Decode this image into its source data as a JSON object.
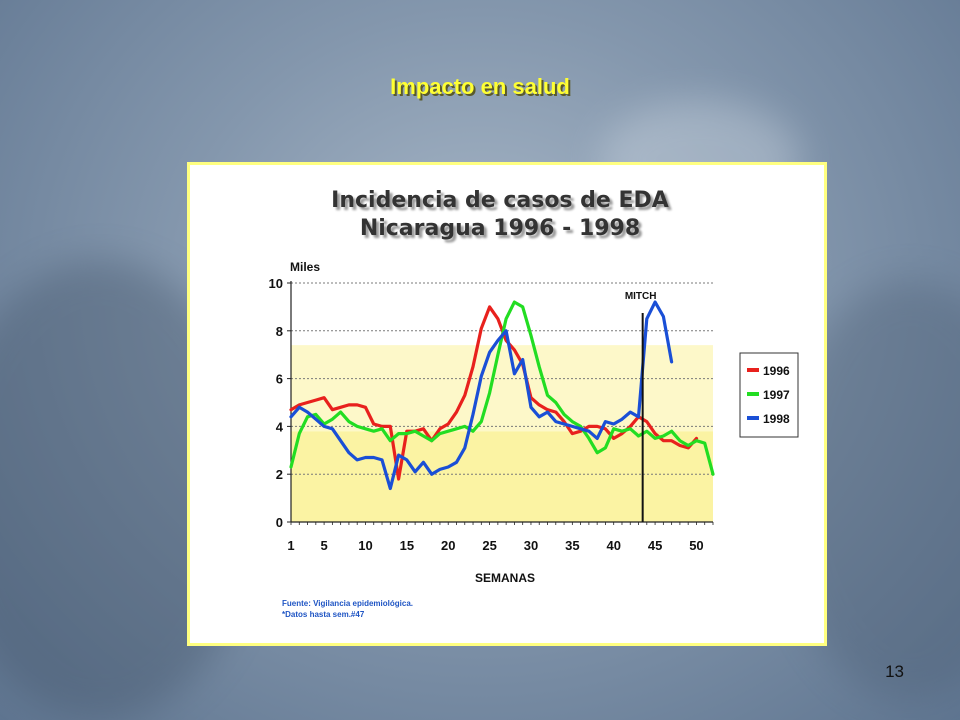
{
  "slide": {
    "title": "Impacto en salud",
    "page_number": "13"
  },
  "chart_data": {
    "type": "line",
    "title": "Incidencia de casos de EDA",
    "subtitle": "Nicaragua 1996 - 1998",
    "xlabel": "SEMANAS",
    "ylabel": "Miles",
    "xlim": [
      1,
      52
    ],
    "ylim": [
      0,
      10
    ],
    "x_ticks": [
      1,
      5,
      10,
      15,
      20,
      25,
      30,
      35,
      40,
      45,
      50
    ],
    "y_ticks": [
      0,
      2,
      4,
      6,
      8,
      10
    ],
    "grid": true,
    "legend_position": "right",
    "bands": [
      {
        "from": 0,
        "to": 3.8,
        "color": "#fbf3a3"
      },
      {
        "from": 3.8,
        "to": 7.4,
        "color": "#fdf8c9"
      }
    ],
    "annotations": [
      {
        "text": "MITCH",
        "x": 43.5
      }
    ],
    "notes": [
      "Fuente: Vigilancia epidemiológica.",
      "*Datos hasta sem.#47"
    ],
    "x": [
      1,
      2,
      3,
      4,
      5,
      6,
      7,
      8,
      9,
      10,
      11,
      12,
      13,
      14,
      15,
      16,
      17,
      18,
      19,
      20,
      21,
      22,
      23,
      24,
      25,
      26,
      27,
      28,
      29,
      30,
      31,
      32,
      33,
      34,
      35,
      36,
      37,
      38,
      39,
      40,
      41,
      42,
      43,
      44,
      45,
      46,
      47,
      48,
      49,
      50,
      51,
      52
    ],
    "series": [
      {
        "name": "1996",
        "color": "#e8211d",
        "values": [
          4.7,
          4.9,
          5.0,
          5.1,
          5.2,
          4.7,
          4.8,
          4.9,
          4.9,
          4.8,
          4.1,
          4.0,
          4.0,
          1.8,
          3.8,
          3.8,
          3.9,
          3.4,
          3.9,
          4.1,
          4.6,
          5.3,
          6.5,
          8.1,
          9.0,
          8.5,
          7.6,
          7.2,
          6.6,
          5.2,
          4.9,
          4.7,
          4.6,
          4.2,
          3.7,
          3.8,
          4.0,
          4.0,
          3.9,
          3.5,
          3.7,
          4.0,
          4.4,
          4.2,
          3.7,
          3.4,
          3.4,
          3.2,
          3.1,
          3.5,
          null,
          null
        ]
      },
      {
        "name": "1997",
        "color": "#22dd22",
        "values": [
          2.3,
          3.7,
          4.4,
          4.5,
          4.1,
          4.3,
          4.6,
          4.2,
          4.0,
          3.9,
          3.8,
          3.9,
          3.4,
          3.7,
          3.7,
          3.8,
          3.6,
          3.4,
          3.7,
          3.8,
          3.9,
          4.0,
          3.8,
          4.2,
          5.4,
          7.0,
          8.5,
          9.2,
          9.0,
          7.8,
          6.5,
          5.3,
          5.0,
          4.5,
          4.2,
          4.0,
          3.5,
          2.9,
          3.1,
          3.9,
          3.8,
          3.9,
          3.6,
          3.8,
          3.5,
          3.6,
          3.8,
          3.4,
          3.2,
          3.4,
          3.3,
          2.0
        ]
      },
      {
        "name": "1998",
        "color": "#1a4fd6",
        "values": [
          4.4,
          4.8,
          4.6,
          4.3,
          4.0,
          3.9,
          3.4,
          2.9,
          2.6,
          2.7,
          2.7,
          2.6,
          1.4,
          2.8,
          2.6,
          2.1,
          2.5,
          2.0,
          2.2,
          2.3,
          2.5,
          3.1,
          4.5,
          6.1,
          7.1,
          7.6,
          8.0,
          6.2,
          6.8,
          4.8,
          4.4,
          4.6,
          4.2,
          4.1,
          4.0,
          3.9,
          3.8,
          3.5,
          4.2,
          4.1,
          4.3,
          4.6,
          4.4,
          8.5,
          9.2,
          8.6,
          6.7,
          null,
          null,
          null,
          null,
          null
        ]
      }
    ]
  }
}
